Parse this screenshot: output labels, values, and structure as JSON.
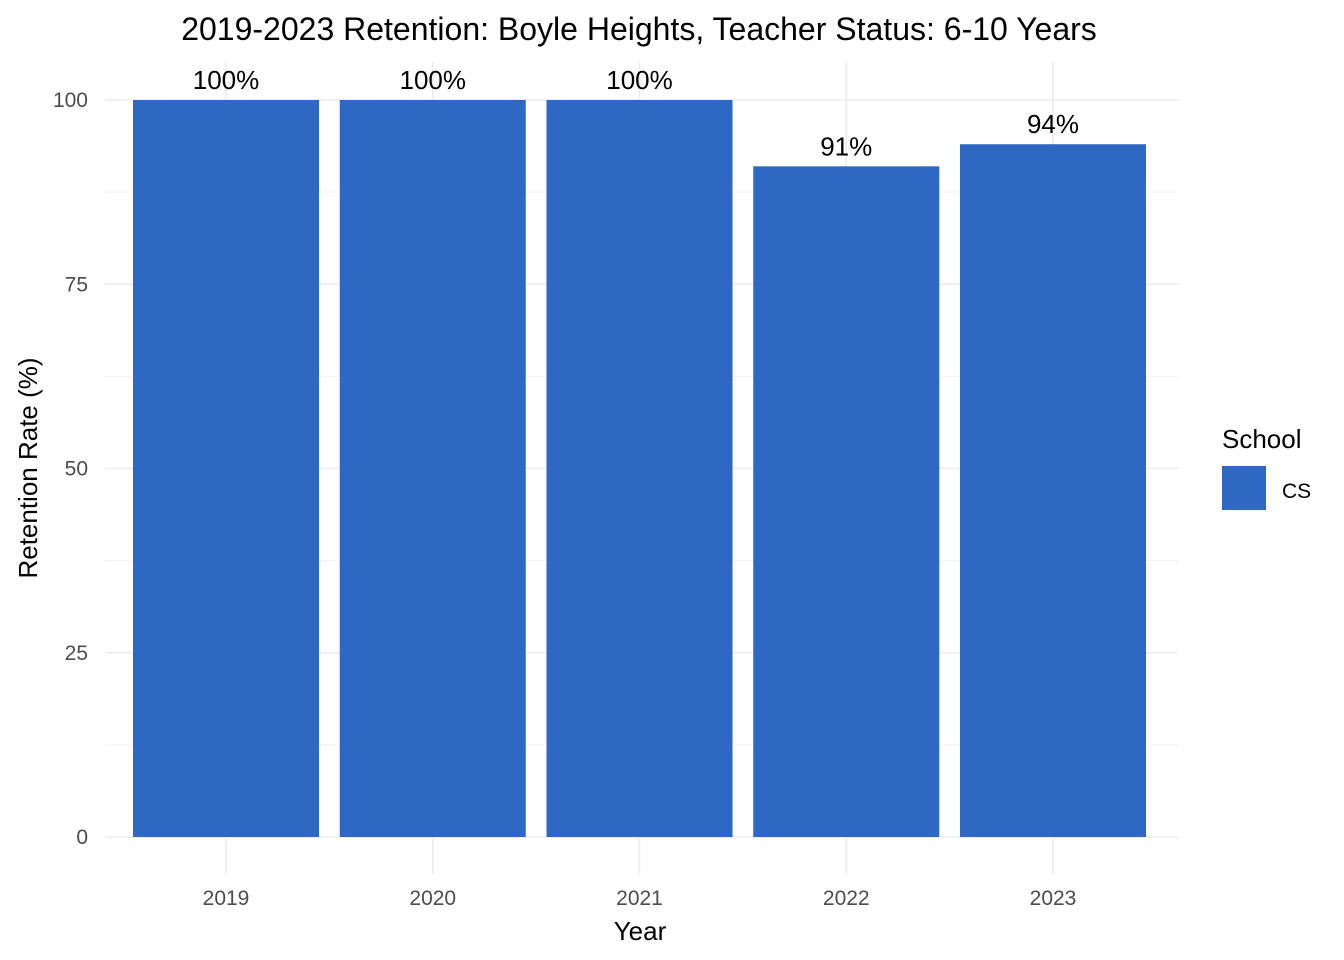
{
  "chart_data": {
    "type": "bar",
    "title": "2019-2023 Retention: Boyle Heights, Teacher Status: 6-10 Years",
    "xlabel": "Year",
    "ylabel": "Retention Rate (%)",
    "categories": [
      "2019",
      "2020",
      "2021",
      "2022",
      "2023"
    ],
    "series": [
      {
        "name": "CS",
        "values": [
          100,
          100,
          100,
          91,
          94
        ],
        "labels": [
          "100%",
          "100%",
          "100%",
          "91%",
          "94%"
        ],
        "color": "#2e68c3"
      }
    ],
    "ylim": [
      0,
      100
    ],
    "yticks": [
      0,
      25,
      50,
      75,
      100
    ],
    "ytick_labels": [
      "0",
      "25",
      "50",
      "75",
      "100"
    ],
    "grid": true,
    "legend": {
      "title": "School",
      "position": "right"
    }
  }
}
